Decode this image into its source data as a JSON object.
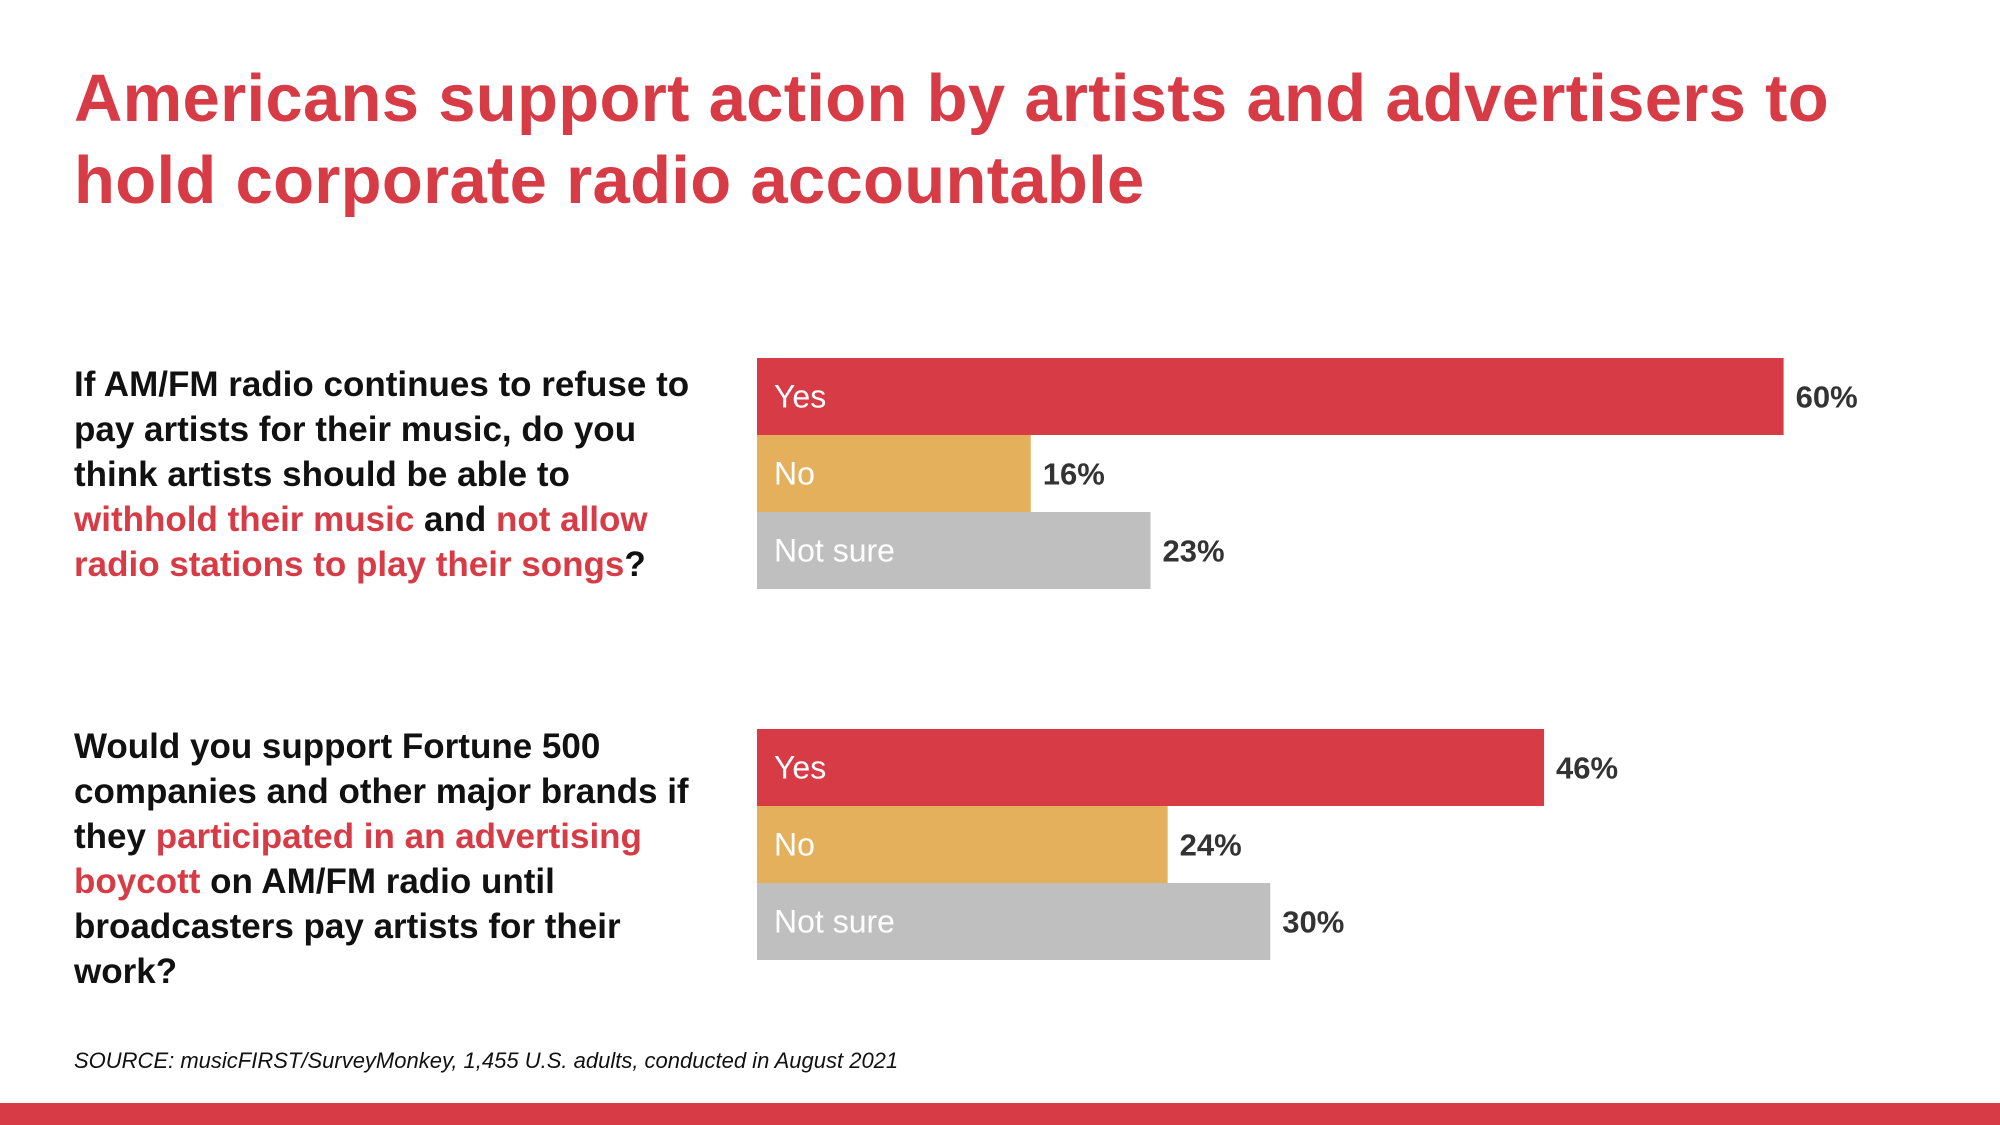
{
  "title": "Americans support action by artists and advertisers to hold corporate radio accountable",
  "questions": [
    {
      "parts": [
        {
          "text": "If AM/FM radio continues to refuse to pay artists for their music, do you think artists should be able to ",
          "highlight": false
        },
        {
          "text": "withhold their music",
          "highlight": true
        },
        {
          "text": " and ",
          "highlight": false
        },
        {
          "text": "not allow radio stations to play their songs",
          "highlight": true
        },
        {
          "text": "?",
          "highlight": false
        }
      ]
    },
    {
      "parts": [
        {
          "text": "Would you support Fortune 500 companies and other major brands if they ",
          "highlight": false
        },
        {
          "text": "participated in an advertising boycott",
          "highlight": true
        },
        {
          "text": " on AM/FM radio until broadcasters pay artists for their work?",
          "highlight": false
        }
      ]
    }
  ],
  "chart_data": [
    {
      "type": "bar",
      "orientation": "horizontal",
      "categories": [
        "Yes",
        "No",
        "Not sure"
      ],
      "values": [
        60,
        16,
        23
      ],
      "value_labels": [
        "60%",
        "16%",
        "23%"
      ],
      "colors": [
        "#d63b46",
        "#e5b05c",
        "#bfbfbf"
      ]
    },
    {
      "type": "bar",
      "orientation": "horizontal",
      "categories": [
        "Yes",
        "No",
        "Not sure"
      ],
      "values": [
        46,
        24,
        30
      ],
      "value_labels": [
        "46%",
        "24%",
        "30%"
      ],
      "colors": [
        "#d63b46",
        "#e5b05c",
        "#bfbfbf"
      ]
    }
  ],
  "source": "SOURCE: musicFIRST/SurveyMonkey, 1,455 U.S. adults, conducted in August 2021",
  "colors": {
    "accent": "#d63b46",
    "yes": "#d63b46",
    "no": "#e5b05c",
    "not_sure": "#bfbfbf",
    "value_text": "#333333"
  }
}
